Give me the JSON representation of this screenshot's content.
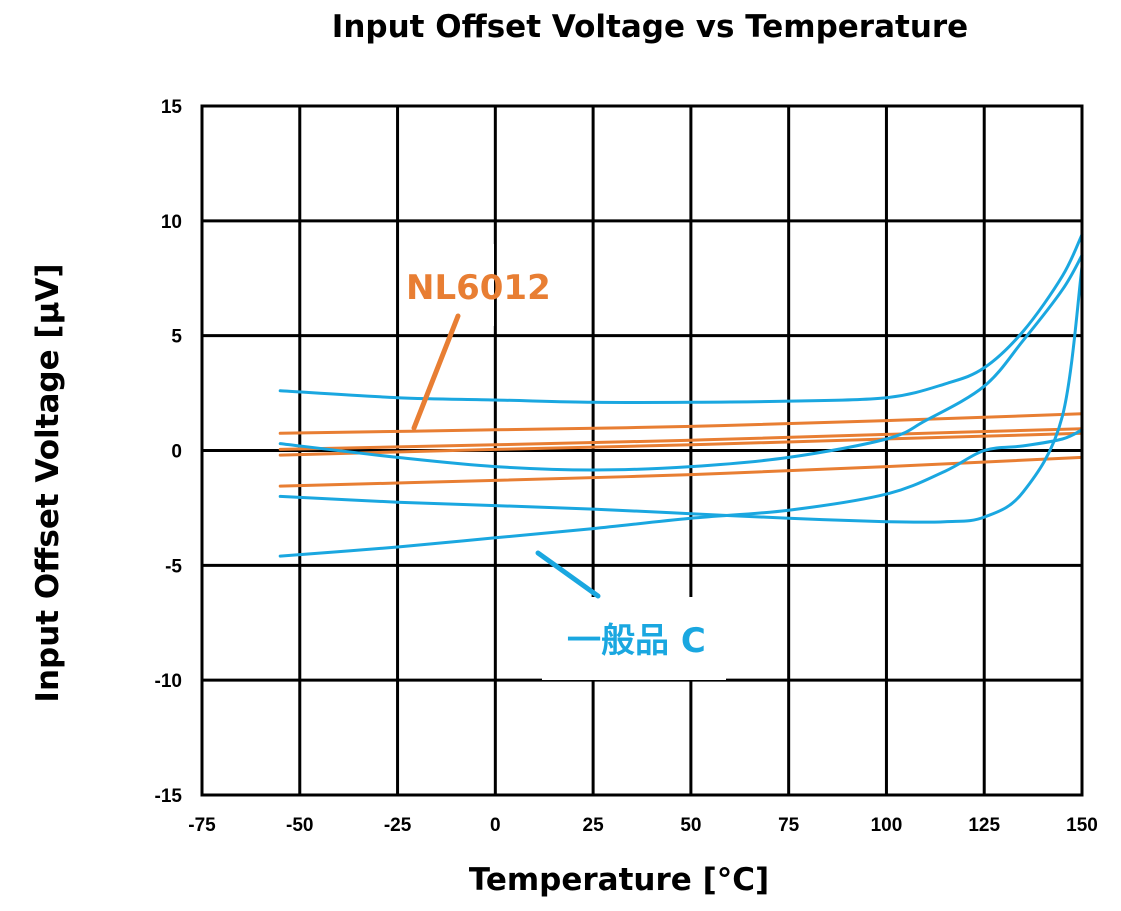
{
  "chart_data": {
    "type": "line",
    "title": "Input Offset Voltage vs Temperature",
    "xlabel": "Temperature [°C]",
    "ylabel": "Input Offset Voltage [µV]",
    "xlim": [
      -75,
      150
    ],
    "ylim": [
      -15,
      15
    ],
    "xticks": [
      -75,
      -50,
      -25,
      0,
      25,
      50,
      75,
      100,
      125,
      150
    ],
    "yticks": [
      15,
      10,
      5,
      0,
      -5,
      -10,
      -15
    ],
    "grid": true,
    "colors": {
      "nl6012": "#E87E33",
      "general": "#1AA7E0"
    },
    "series": [
      {
        "name": "NL6012",
        "group": "nl6012",
        "x": [
          -55,
          0,
          50,
          100,
          150
        ],
        "y": [
          0.75,
          0.9,
          1.05,
          1.3,
          1.6
        ]
      },
      {
        "name": "NL6012",
        "group": "nl6012",
        "x": [
          -55,
          0,
          50,
          100,
          150
        ],
        "y": [
          0.05,
          0.25,
          0.45,
          0.7,
          0.95
        ]
      },
      {
        "name": "NL6012",
        "group": "nl6012",
        "x": [
          -55,
          0,
          50,
          100,
          150
        ],
        "y": [
          -0.2,
          0.05,
          0.25,
          0.5,
          0.75
        ]
      },
      {
        "name": "NL6012",
        "group": "nl6012",
        "x": [
          -55,
          0,
          50,
          100,
          150
        ],
        "y": [
          -1.55,
          -1.3,
          -1.05,
          -0.7,
          -0.3
        ]
      },
      {
        "name": "一般品 C",
        "group": "general",
        "x": [
          -55,
          -25,
          0,
          25,
          50,
          75,
          100,
          115,
          125,
          135,
          145,
          150
        ],
        "y": [
          2.6,
          2.3,
          2.2,
          2.1,
          2.1,
          2.15,
          2.3,
          2.9,
          3.6,
          5.2,
          7.6,
          9.4
        ]
      },
      {
        "name": "一般品 C",
        "group": "general",
        "x": [
          -55,
          -25,
          0,
          25,
          50,
          75,
          100,
          110,
          125,
          135,
          145,
          150
        ],
        "y": [
          0.3,
          -0.3,
          -0.7,
          -0.85,
          -0.7,
          -0.3,
          0.5,
          1.3,
          2.8,
          4.8,
          7.0,
          8.5
        ]
      },
      {
        "name": "一般品 C",
        "group": "general",
        "x": [
          -55,
          -25,
          0,
          25,
          50,
          75,
          100,
          115,
          125,
          135,
          145,
          150
        ],
        "y": [
          -2.0,
          -2.25,
          -2.4,
          -2.55,
          -2.75,
          -2.95,
          -3.1,
          -3.1,
          -2.9,
          -1.8,
          1.5,
          8.0
        ]
      },
      {
        "name": "一般品 C",
        "group": "general",
        "x": [
          -55,
          -25,
          0,
          25,
          50,
          75,
          100,
          115,
          125,
          135,
          145,
          150
        ],
        "y": [
          -4.6,
          -4.2,
          -3.8,
          -3.4,
          -2.95,
          -2.6,
          -1.9,
          -0.9,
          0.0,
          0.2,
          0.5,
          0.9
        ]
      }
    ],
    "annotations": [
      {
        "text": "NL6012",
        "group": "nl6012"
      },
      {
        "text": "一般品 C",
        "group": "general"
      }
    ]
  }
}
